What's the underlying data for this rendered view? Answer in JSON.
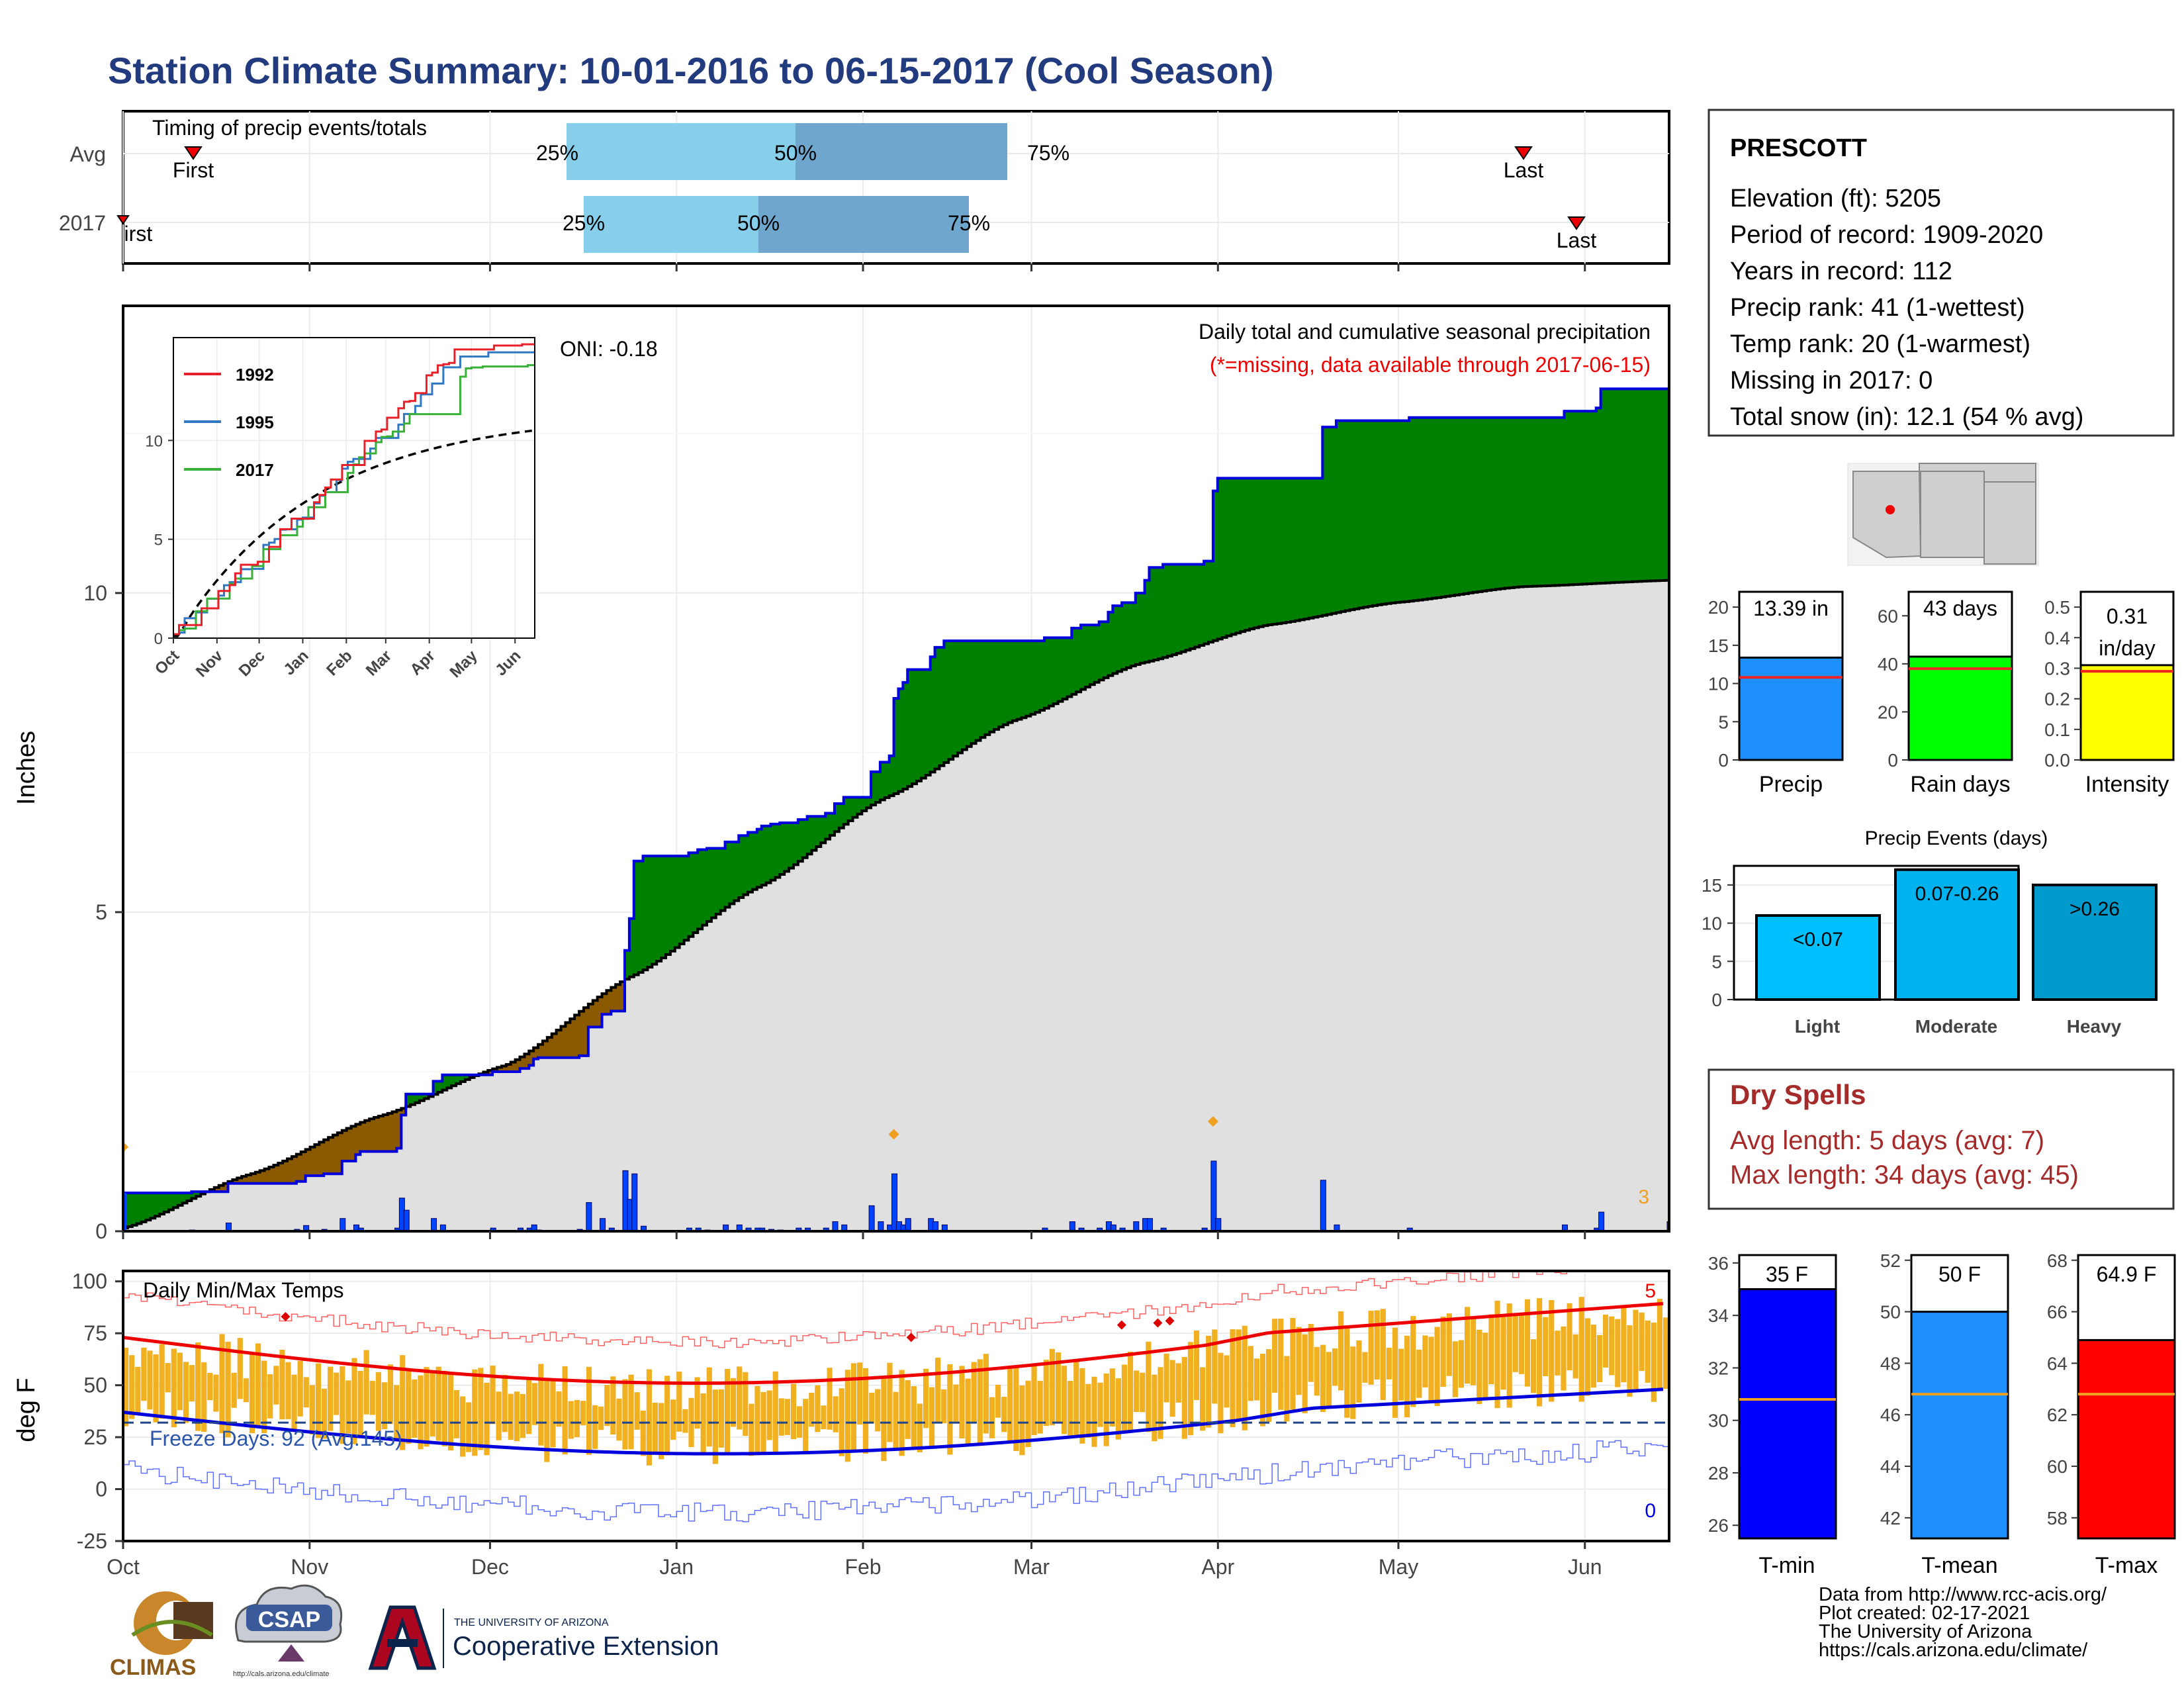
{
  "title": "Station Climate Summary: 10-01-2016 to 06-15-2017 (Cool Season)",
  "timing": {
    "panel_title": "Timing of precip events/totals",
    "rows": [
      {
        "label": "Avg",
        "first_label": "First",
        "last_label": "Last",
        "q25": "25%",
        "q50": "50%",
        "q75": "75%"
      },
      {
        "label": "2017",
        "first_label": "First",
        "last_label": "Last",
        "q25": "25%",
        "q50": "50%",
        "q75": "75%"
      }
    ]
  },
  "station": {
    "name": "PRESCOTT",
    "lines": [
      "Elevation (ft): 5205",
      "Period of record: 1909-2020",
      "Years in record: 112",
      "Precip rank: 41 (1-wettest)",
      "Temp rank: 20 (1-warmest)",
      "Missing in 2017: 0",
      "Total snow (in): 12.1 (54 % avg)"
    ]
  },
  "main": {
    "ylabel": "Inches",
    "oni": "ONI: -0.18",
    "caption": "Daily total and cumulative seasonal precipitation",
    "missing_note": "(*=missing, data available through 2017-06-15)",
    "corner_count": "3",
    "yticks": [
      "0",
      "5",
      "10"
    ],
    "months": [
      "Oct",
      "Nov",
      "Dec",
      "Jan",
      "Feb",
      "Mar",
      "Apr",
      "May",
      "Jun"
    ]
  },
  "inset": {
    "legend": [
      "1992",
      "1995",
      "2017"
    ],
    "yticks": [
      "0",
      "5",
      "10"
    ],
    "months": [
      "Oct",
      "Nov",
      "Dec",
      "Jan",
      "Feb",
      "Mar",
      "Apr",
      "May",
      "Jun"
    ]
  },
  "temps": {
    "title": "Daily Min/Max Temps",
    "ylabel": "deg F",
    "freeze": "Freeze Days: 92 (Avg:145)",
    "count_high": "5",
    "count_low": "0",
    "yticks": [
      "100",
      "75",
      "50",
      "25",
      "0",
      "-25"
    ]
  },
  "summary_bars": [
    {
      "label": "Precip",
      "value_text": "13.39 in",
      "yticks": [
        "20",
        "15",
        "10",
        "5",
        "0"
      ]
    },
    {
      "label": "Rain days",
      "value_text": "43 days",
      "yticks": [
        "60",
        "40",
        "20",
        "0"
      ]
    },
    {
      "label": "Intensity",
      "value_text_1": "0.31",
      "value_text_2": "in/day",
      "yticks": [
        "0.5",
        "0.4",
        "0.3",
        "0.2",
        "0.1",
        "0.0"
      ]
    }
  ],
  "events": {
    "title": "Precip Events (days)",
    "yticks": [
      "15",
      "10",
      "5",
      "0"
    ],
    "bars": [
      {
        "label": "Light",
        "range": "<0.07"
      },
      {
        "label": "Moderate",
        "range": "0.07-0.26"
      },
      {
        "label": "Heavy",
        "range": ">0.26"
      }
    ]
  },
  "dry_spells": {
    "title": "Dry Spells",
    "line1": "Avg length: 5 days (avg: 7)",
    "line2": "Max length: 34 days (avg: 45)"
  },
  "temp_bars": [
    {
      "label": "T-min",
      "value_text": "35 F",
      "yticks": [
        "36",
        "34",
        "32",
        "30",
        "28",
        "26"
      ]
    },
    {
      "label": "T-mean",
      "value_text": "50 F",
      "yticks": [
        "52",
        "50",
        "48",
        "46",
        "44",
        "42"
      ]
    },
    {
      "label": "T-max",
      "value_text": "64.9 F",
      "yticks": [
        "68",
        "66",
        "64",
        "62",
        "60",
        "58"
      ]
    }
  ],
  "footer": {
    "lines": [
      "Data from http://www.rcc-acis.org/",
      "Plot created: 02-17-2021",
      "The University of Arizona",
      "https://cals.arizona.edu/climate/"
    ],
    "climas": "CLIMAS",
    "csap": "CSAP",
    "csap_url": "http://cals.arizona.edu/climate",
    "ua_small": "THE UNIVERSITY OF ARIZONA",
    "ua_big": "Cooperative Extension"
  },
  "chart_data": [
    {
      "type": "bar",
      "name": "timing",
      "rows": [
        {
          "row": "Avg",
          "first": "Oct 20",
          "q25": "Dec 15",
          "q50": "Jan 22",
          "q75": "Mar 1",
          "last": "May 21"
        },
        {
          "row": "2017",
          "first": "Oct 1",
          "q25": "Dec 18",
          "q50": "Jan 16",
          "q75": "Feb 20",
          "last": "May 31"
        }
      ]
    },
    {
      "type": "area",
      "name": "cumulative precipitation",
      "x_range": [
        "2016-10-01",
        "2017-06-15"
      ],
      "ylim": [
        0,
        14.5
      ],
      "observed_2017": [
        [
          0,
          0.6
        ],
        [
          15,
          0.62
        ],
        [
          23,
          0.75
        ],
        [
          38,
          0.78
        ],
        [
          40,
          0.87
        ],
        [
          44,
          0.9
        ],
        [
          48,
          1.1
        ],
        [
          51,
          1.2
        ],
        [
          52,
          1.25
        ],
        [
          60,
          1.3
        ],
        [
          61,
          1.82
        ],
        [
          62,
          2.15
        ],
        [
          68,
          2.35
        ],
        [
          70,
          2.45
        ],
        [
          79,
          2.45
        ],
        [
          81,
          2.5
        ],
        [
          87,
          2.55
        ],
        [
          89,
          2.6
        ],
        [
          90,
          2.7
        ],
        [
          91,
          2.72
        ],
        [
          100,
          2.75
        ],
        [
          102,
          3.2
        ],
        [
          105,
          3.4
        ],
        [
          107,
          3.45
        ],
        [
          110,
          4.4
        ],
        [
          111,
          4.9
        ],
        [
          112,
          5.8
        ],
        [
          114,
          5.88
        ],
        [
          124,
          5.93
        ],
        [
          126,
          5.98
        ],
        [
          128,
          6.0
        ],
        [
          132,
          6.1
        ],
        [
          135,
          6.2
        ],
        [
          137,
          6.25
        ],
        [
          139,
          6.3
        ],
        [
          140,
          6.35
        ],
        [
          142,
          6.38
        ],
        [
          144,
          6.4
        ],
        [
          148,
          6.45
        ],
        [
          150,
          6.5
        ],
        [
          154,
          6.55
        ],
        [
          156,
          6.7
        ],
        [
          158,
          6.8
        ],
        [
          164,
          7.2
        ],
        [
          166,
          7.35
        ],
        [
          168,
          7.45
        ],
        [
          169,
          8.35
        ],
        [
          170,
          8.5
        ],
        [
          171,
          8.6
        ],
        [
          172,
          8.8
        ],
        [
          177,
          9.0
        ],
        [
          178,
          9.15
        ],
        [
          180,
          9.25
        ],
        [
          202,
          9.3
        ],
        [
          208,
          9.45
        ],
        [
          210,
          9.5
        ],
        [
          214,
          9.55
        ],
        [
          216,
          9.7
        ],
        [
          217,
          9.8
        ],
        [
          219,
          9.85
        ],
        [
          222,
          10.0
        ],
        [
          224,
          10.2
        ],
        [
          225,
          10.4
        ],
        [
          228,
          10.45
        ],
        [
          237,
          10.5
        ],
        [
          239,
          11.6
        ],
        [
          240,
          11.8
        ],
        [
          243,
          11.8
        ],
        [
          262,
          11.8
        ],
        [
          263,
          12.6
        ],
        [
          266,
          12.7
        ],
        [
          275,
          12.7
        ],
        [
          282,
          12.75
        ],
        [
          291,
          12.75
        ],
        [
          316,
          12.85
        ],
        [
          323,
          12.9
        ],
        [
          324,
          13.2
        ],
        [
          339,
          13.35
        ]
      ],
      "average": [
        [
          0,
          0.05
        ],
        [
          30,
          0.9
        ],
        [
          60,
          1.8
        ],
        [
          90,
          2.6
        ],
        [
          120,
          4.0
        ],
        [
          150,
          5.4
        ],
        [
          180,
          6.8
        ],
        [
          210,
          8.0
        ],
        [
          240,
          8.9
        ],
        [
          270,
          9.5
        ],
        [
          300,
          9.85
        ],
        [
          330,
          10.1
        ],
        [
          365,
          10.2
        ]
      ]
    },
    {
      "type": "line",
      "name": "inset cumulative comparison",
      "series": [
        {
          "name": "1992",
          "color": "#e8202a"
        },
        {
          "name": "1995",
          "color": "#2e78c4"
        },
        {
          "name": "2017",
          "color": "#38b03a"
        }
      ],
      "ylim": [
        0,
        14
      ]
    },
    {
      "type": "line",
      "name": "daily temperatures",
      "ylim": [
        -25,
        105
      ],
      "freeze_line": 32
    },
    {
      "type": "bar",
      "name": "season totals",
      "categories": [
        "Precip",
        "Rain days",
        "Intensity"
      ],
      "values": [
        13.39,
        43,
        0.31
      ],
      "averages": [
        10.8,
        38,
        0.29
      ],
      "ylims": [
        [
          0,
          22
        ],
        [
          0,
          70
        ],
        [
          0,
          0.55
        ]
      ],
      "colors": [
        "#1e8fff",
        "#00ff00",
        "#ffff00"
      ]
    },
    {
      "type": "bar",
      "name": "precip events",
      "categories": [
        "Light",
        "Moderate",
        "Heavy"
      ],
      "values": [
        11,
        17,
        15
      ],
      "ylim": [
        0,
        17.5
      ]
    },
    {
      "type": "bar",
      "name": "temperature means",
      "categories": [
        "T-min",
        "T-mean",
        "T-max"
      ],
      "values": [
        35,
        50,
        64.9
      ],
      "averages": [
        30.8,
        46.8,
        62.8
      ],
      "ylims": [
        [
          25.5,
          36.3
        ],
        [
          41.2,
          52.2
        ],
        [
          57.2,
          68.2
        ]
      ],
      "colors": [
        "#0000ff",
        "#1e8fff",
        "#ff0000"
      ]
    }
  ]
}
